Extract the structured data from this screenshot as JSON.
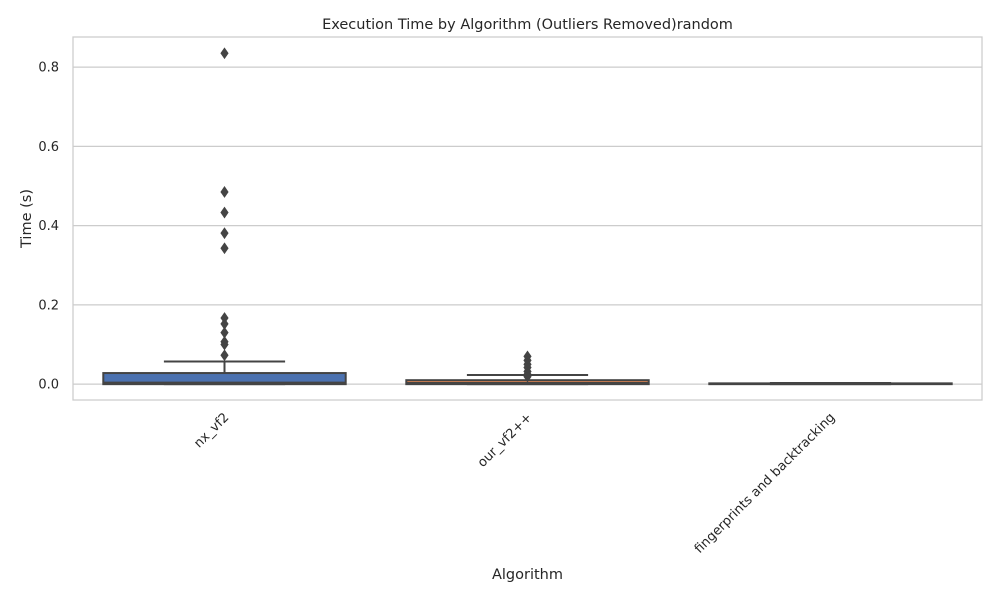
{
  "chart_data": {
    "type": "box",
    "title": "Execution Time by Algorithm (Outliers Removed)random",
    "xlabel": "Algorithm",
    "ylabel": "Time (s)",
    "ylim": [
      -0.04,
      0.876
    ],
    "yticks": [
      0.0,
      0.2,
      0.4,
      0.6,
      0.8
    ],
    "ytick_labels": [
      "0.0",
      "0.2",
      "0.4",
      "0.6",
      "0.8"
    ],
    "grid": "horizontal",
    "categories": [
      "nx_vf2",
      "our_vf2++",
      "fingerprints and backtracking"
    ],
    "boxes": [
      {
        "name": "nx_vf2",
        "q1": 0.0,
        "median": 0.004,
        "q3": 0.028,
        "whisker_low": 0.0,
        "whisker_high": 0.057,
        "outliers": [
          0.835,
          0.485,
          0.433,
          0.381,
          0.343,
          0.167,
          0.152,
          0.13,
          0.107,
          0.1,
          0.073
        ],
        "color": "#4c72b0"
      },
      {
        "name": "our_vf2++",
        "q1": 0.0,
        "median": 0.003,
        "q3": 0.01,
        "whisker_low": 0.0,
        "whisker_high": 0.023,
        "outliers": [
          0.07,
          0.06,
          0.05,
          0.042,
          0.032,
          0.025,
          0.019
        ],
        "color": "#dd8452"
      },
      {
        "name": "fingerprints and backtracking",
        "q1": 0.0,
        "median": 0.001,
        "q3": 0.002,
        "whisker_low": 0.0,
        "whisker_high": 0.003,
        "outliers": [],
        "color": "#55a868"
      }
    ]
  }
}
